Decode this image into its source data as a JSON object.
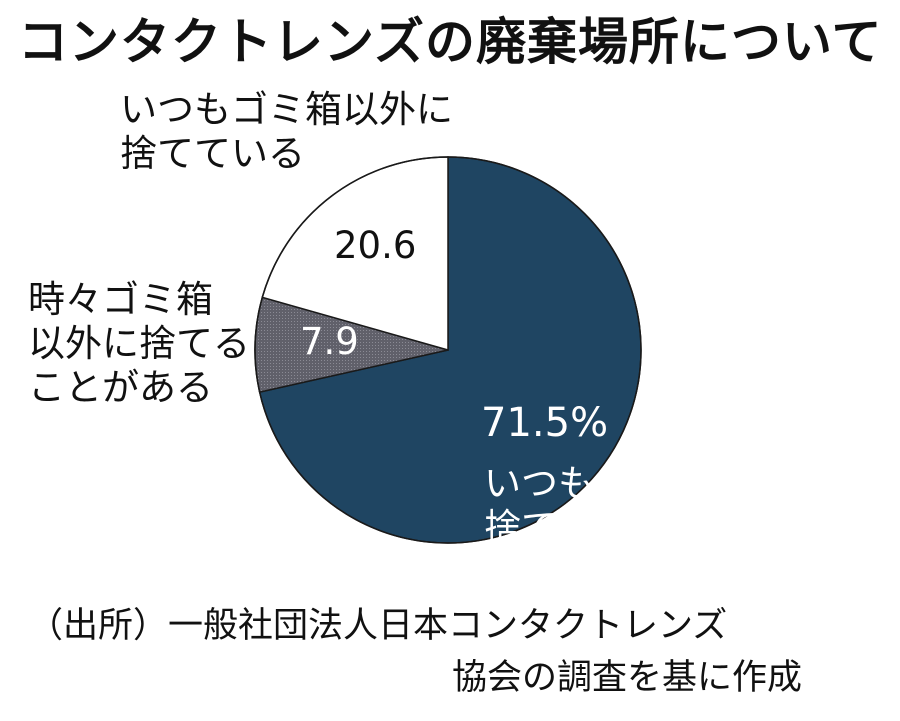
{
  "chart_data": {
    "type": "pie",
    "title": "コンタクトレンズの廃棄場所について",
    "categories": [
      "いつもゴミ箱に捨てている",
      "時々ゴミ箱以外に捨てることがある",
      "いつもゴミ箱以外に捨てている"
    ],
    "values": [
      71.5,
      7.9,
      20.6
    ],
    "value_labels": [
      "71.5%",
      "7.9",
      "20.6"
    ],
    "colors": [
      "#1f4562",
      "#666670",
      "#ffffff"
    ],
    "start_angle_deg": 0,
    "direction": "clockwise"
  },
  "labels": {
    "always_trash": [
      "いつもゴミ箱に",
      "捨てている"
    ],
    "sometimes_other": [
      "時々ゴミ箱",
      "以外に捨てる",
      "ことがある"
    ],
    "always_other": [
      "いつもゴミ箱以外に",
      "捨てている"
    ]
  },
  "source": [
    "（出所）一般社団法人日本コンタクトレンズ",
    "協会の調査を基に作成"
  ]
}
